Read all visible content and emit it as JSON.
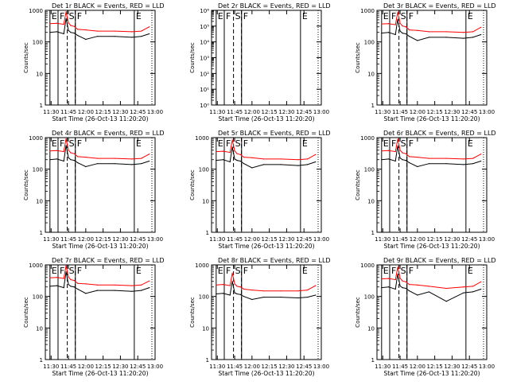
{
  "page": {
    "x_tick_labels": [
      "11:30",
      "11:45",
      "12:00",
      "12:15",
      "12:30",
      "12:45",
      "13:00"
    ],
    "colors": {
      "events": "#000000",
      "lld": "#ff0000",
      "frame": "#000000",
      "background": "#ffffff"
    }
  },
  "chart_data": [
    {
      "id": "det-1r",
      "type": "line",
      "title": "Det 1r BLACK = Events, RED = LLD",
      "xlabel": "Start Time (26-Oct-13 11:20:20)",
      "ylabel": "Counts/sec",
      "y_scale": "log",
      "y_range": [
        1,
        1000
      ],
      "y_tick_labels": [
        "1",
        "10",
        "100",
        "1000"
      ],
      "x_range": [
        "11:25",
        "13:00"
      ],
      "markers": [
        {
          "label": "E",
          "time": "11:29",
          "style": "solid"
        },
        {
          "label": "F",
          "time": "11:36",
          "style": "solid"
        },
        {
          "label": "S",
          "time": "11:44",
          "style": "dashed"
        },
        {
          "label": "F",
          "time": "11:51",
          "style": "solid"
        },
        {
          "label": "E",
          "time": "12:42",
          "style": "solid"
        }
      ],
      "series": [
        {
          "name": "Events",
          "color": "#000000",
          "x": [
            "11:29",
            "11:35",
            "11:41",
            "11:43",
            "11:45",
            "11:47",
            "11:50",
            "11:53",
            "12:00",
            "12:10",
            "12:25",
            "12:40",
            "12:48",
            "12:55"
          ],
          "y": [
            200,
            210,
            180,
            550,
            230,
            200,
            190,
            160,
            120,
            150,
            150,
            140,
            150,
            180
          ]
        },
        {
          "name": "LLD",
          "color": "#ff0000",
          "x": [
            "11:29",
            "11:35",
            "11:41",
            "11:43",
            "11:45",
            "11:47",
            "11:50",
            "11:53",
            "12:00",
            "12:10",
            "12:25",
            "12:40",
            "12:48",
            "12:55"
          ],
          "y": [
            380,
            390,
            360,
            900,
            400,
            330,
            310,
            250,
            240,
            220,
            220,
            210,
            220,
            300
          ]
        }
      ]
    },
    {
      "id": "det-2r",
      "type": "line",
      "title": "Det 2r BLACK = Events, RED = LLD",
      "xlabel": "Start Time (26-Oct-13 11:20:20)",
      "ylabel": "Counts/sec",
      "y_scale": "log",
      "y_range": [
        1,
        1000000
      ],
      "y_tick_labels": [
        "10⁰",
        "10¹",
        "10²",
        "10³",
        "10⁴",
        "10⁵",
        "10⁶"
      ],
      "x_range": [
        "11:25",
        "13:00"
      ],
      "markers": [
        {
          "label": "E",
          "time": "11:29",
          "style": "solid"
        },
        {
          "label": "F",
          "time": "11:36",
          "style": "solid"
        },
        {
          "label": "S",
          "time": "11:44",
          "style": "dashed"
        },
        {
          "label": "F",
          "time": "11:51",
          "style": "solid"
        },
        {
          "label": "E",
          "time": "12:42",
          "style": "solid"
        }
      ],
      "series": []
    },
    {
      "id": "det-3r",
      "type": "line",
      "title": "Det 3r BLACK = Events, RED = LLD",
      "xlabel": "Start Time (26-Oct-13 11:20:20)",
      "ylabel": "Counts/sec",
      "y_scale": "log",
      "y_range": [
        1,
        1000
      ],
      "y_tick_labels": [
        "1",
        "10",
        "100",
        "1000"
      ],
      "x_range": [
        "11:25",
        "13:00"
      ],
      "markers": [
        {
          "label": "E",
          "time": "11:29",
          "style": "solid"
        },
        {
          "label": "F",
          "time": "11:36",
          "style": "solid"
        },
        {
          "label": "S",
          "time": "11:44",
          "style": "dashed"
        },
        {
          "label": "F",
          "time": "11:51",
          "style": "solid"
        },
        {
          "label": "E",
          "time": "12:42",
          "style": "solid"
        }
      ],
      "series": [
        {
          "name": "Events",
          "color": "#000000",
          "x": [
            "11:29",
            "11:35",
            "11:41",
            "11:43",
            "11:45",
            "11:47",
            "11:50",
            "11:53",
            "12:00",
            "12:10",
            "12:25",
            "12:40",
            "12:48",
            "12:55"
          ],
          "y": [
            190,
            200,
            170,
            520,
            220,
            190,
            180,
            150,
            110,
            140,
            140,
            130,
            140,
            170
          ]
        },
        {
          "name": "LLD",
          "color": "#ff0000",
          "x": [
            "11:29",
            "11:35",
            "11:41",
            "11:43",
            "11:45",
            "11:47",
            "11:50",
            "11:53",
            "12:00",
            "12:10",
            "12:25",
            "12:40",
            "12:48",
            "12:55"
          ],
          "y": [
            370,
            380,
            350,
            880,
            390,
            320,
            300,
            240,
            230,
            210,
            210,
            200,
            210,
            290
          ]
        }
      ]
    },
    {
      "id": "det-4r",
      "type": "line",
      "title": "Det 4r BLACK = Events, RED = LLD",
      "xlabel": "Start Time (26-Oct-13 11:20:20)",
      "ylabel": "Counts/sec",
      "y_scale": "log",
      "y_range": [
        1,
        1000
      ],
      "y_tick_labels": [
        "1",
        "10",
        "100",
        "1000"
      ],
      "x_range": [
        "11:25",
        "13:00"
      ],
      "markers": [
        {
          "label": "E",
          "time": "11:29",
          "style": "solid"
        },
        {
          "label": "F",
          "time": "11:36",
          "style": "solid"
        },
        {
          "label": "S",
          "time": "11:44",
          "style": "dashed"
        },
        {
          "label": "F",
          "time": "11:51",
          "style": "solid"
        },
        {
          "label": "E",
          "time": "12:42",
          "style": "solid"
        }
      ],
      "series": [
        {
          "name": "Events",
          "color": "#000000",
          "x": [
            "11:29",
            "11:35",
            "11:41",
            "11:43",
            "11:45",
            "11:47",
            "11:50",
            "11:53",
            "12:00",
            "12:10",
            "12:25",
            "12:40",
            "12:48",
            "12:55"
          ],
          "y": [
            200,
            210,
            180,
            560,
            230,
            200,
            190,
            160,
            120,
            150,
            150,
            140,
            150,
            180
          ]
        },
        {
          "name": "LLD",
          "color": "#ff0000",
          "x": [
            "11:29",
            "11:35",
            "11:41",
            "11:43",
            "11:45",
            "11:47",
            "11:50",
            "11:53",
            "12:00",
            "12:10",
            "12:25",
            "12:40",
            "12:48",
            "12:55"
          ],
          "y": [
            380,
            390,
            360,
            920,
            400,
            330,
            310,
            250,
            240,
            220,
            220,
            210,
            220,
            300
          ]
        }
      ]
    },
    {
      "id": "det-5r",
      "type": "line",
      "title": "Det 5r BLACK = Events, RED = LLD",
      "xlabel": "Start Time (26-Oct-13 11:20:20)",
      "ylabel": "Counts/sec",
      "y_scale": "log",
      "y_range": [
        1,
        1000
      ],
      "y_tick_labels": [
        "1",
        "10",
        "100",
        "1000"
      ],
      "x_range": [
        "11:25",
        "13:00"
      ],
      "markers": [
        {
          "label": "E",
          "time": "11:29",
          "style": "solid"
        },
        {
          "label": "F",
          "time": "11:36",
          "style": "solid"
        },
        {
          "label": "S",
          "time": "11:44",
          "style": "dashed"
        },
        {
          "label": "F",
          "time": "11:51",
          "style": "solid"
        },
        {
          "label": "E",
          "time": "12:42",
          "style": "solid"
        }
      ],
      "series": [
        {
          "name": "Events",
          "color": "#000000",
          "x": [
            "11:29",
            "11:35",
            "11:41",
            "11:43",
            "11:45",
            "11:47",
            "11:50",
            "11:53",
            "12:00",
            "12:10",
            "12:25",
            "12:40",
            "12:48",
            "12:55"
          ],
          "y": [
            190,
            200,
            170,
            500,
            210,
            190,
            180,
            150,
            110,
            140,
            140,
            130,
            140,
            170
          ]
        },
        {
          "name": "LLD",
          "color": "#ff0000",
          "x": [
            "11:29",
            "11:35",
            "11:41",
            "11:43",
            "11:45",
            "11:47",
            "11:50",
            "11:53",
            "12:00",
            "12:10",
            "12:25",
            "12:40",
            "12:48",
            "12:55"
          ],
          "y": [
            360,
            370,
            340,
            850,
            380,
            310,
            290,
            240,
            230,
            210,
            210,
            200,
            210,
            290
          ]
        }
      ]
    },
    {
      "id": "det-6r",
      "type": "line",
      "title": "Det 6r BLACK = Events, RED = LLD",
      "xlabel": "Start Time (26-Oct-13 11:20:20)",
      "ylabel": "Counts/sec",
      "y_scale": "log",
      "y_range": [
        1,
        1000
      ],
      "y_tick_labels": [
        "1",
        "10",
        "100",
        "1000"
      ],
      "x_range": [
        "11:25",
        "13:00"
      ],
      "markers": [
        {
          "label": "E",
          "time": "11:29",
          "style": "solid"
        },
        {
          "label": "F",
          "time": "11:36",
          "style": "solid"
        },
        {
          "label": "S",
          "time": "11:44",
          "style": "dashed"
        },
        {
          "label": "F",
          "time": "11:51",
          "style": "solid"
        },
        {
          "label": "E",
          "time": "12:42",
          "style": "solid"
        }
      ],
      "series": [
        {
          "name": "Events",
          "color": "#000000",
          "x": [
            "11:29",
            "11:35",
            "11:41",
            "11:43",
            "11:45",
            "11:47",
            "11:50",
            "11:53",
            "12:00",
            "12:10",
            "12:25",
            "12:40",
            "12:48",
            "12:55"
          ],
          "y": [
            200,
            210,
            180,
            540,
            225,
            200,
            190,
            160,
            120,
            150,
            150,
            140,
            150,
            180
          ]
        },
        {
          "name": "LLD",
          "color": "#ff0000",
          "x": [
            "11:29",
            "11:35",
            "11:41",
            "11:43",
            "11:45",
            "11:47",
            "11:50",
            "11:53",
            "12:00",
            "12:10",
            "12:25",
            "12:40",
            "12:48",
            "12:55"
          ],
          "y": [
            380,
            390,
            360,
            900,
            400,
            330,
            310,
            250,
            240,
            220,
            220,
            210,
            220,
            300
          ]
        }
      ]
    },
    {
      "id": "det-7r",
      "type": "line",
      "title": "Det 7r BLACK = Events, RED = LLD",
      "xlabel": "Start Time (26-Oct-13 11:20:20)",
      "ylabel": "Counts/sec",
      "y_scale": "log",
      "y_range": [
        1,
        1000
      ],
      "y_tick_labels": [
        "1",
        "10",
        "100",
        "1000"
      ],
      "x_range": [
        "11:25",
        "13:00"
      ],
      "markers": [
        {
          "label": "E",
          "time": "11:29",
          "style": "solid"
        },
        {
          "label": "F",
          "time": "11:36",
          "style": "solid"
        },
        {
          "label": "S",
          "time": "11:44",
          "style": "dashed"
        },
        {
          "label": "F",
          "time": "11:51",
          "style": "solid"
        },
        {
          "label": "E",
          "time": "12:42",
          "style": "solid"
        }
      ],
      "series": [
        {
          "name": "Events",
          "color": "#000000",
          "x": [
            "11:29",
            "11:35",
            "11:41",
            "11:43",
            "11:45",
            "11:47",
            "11:50",
            "11:53",
            "12:00",
            "12:10",
            "12:25",
            "12:40",
            "12:48",
            "12:55"
          ],
          "y": [
            210,
            220,
            190,
            600,
            240,
            210,
            200,
            170,
            125,
            155,
            155,
            145,
            155,
            190
          ]
        },
        {
          "name": "LLD",
          "color": "#ff0000",
          "x": [
            "11:29",
            "11:35",
            "11:41",
            "11:43",
            "11:45",
            "11:47",
            "11:50",
            "11:53",
            "12:00",
            "12:10",
            "12:25",
            "12:40",
            "12:48",
            "12:55"
          ],
          "y": [
            390,
            400,
            370,
            950,
            410,
            340,
            320,
            260,
            250,
            230,
            230,
            220,
            230,
            310
          ]
        }
      ]
    },
    {
      "id": "det-8r",
      "type": "line",
      "title": "Det 8r BLACK = Events, RED = LLD",
      "xlabel": "Start Time (26-Oct-13 11:20:20)",
      "ylabel": "Counts/sec",
      "y_scale": "log",
      "y_range": [
        1,
        1000
      ],
      "y_tick_labels": [
        "1",
        "10",
        "100",
        "1000"
      ],
      "x_range": [
        "11:25",
        "13:00"
      ],
      "markers": [
        {
          "label": "E",
          "time": "11:29",
          "style": "solid"
        },
        {
          "label": "F",
          "time": "11:36",
          "style": "solid"
        },
        {
          "label": "S",
          "time": "11:44",
          "style": "dashed"
        },
        {
          "label": "F",
          "time": "11:51",
          "style": "solid"
        },
        {
          "label": "E",
          "time": "12:42",
          "style": "solid"
        }
      ],
      "series": [
        {
          "name": "Events",
          "color": "#000000",
          "x": [
            "11:29",
            "11:35",
            "11:41",
            "11:43",
            "11:45",
            "11:47",
            "11:50",
            "11:53",
            "12:00",
            "12:10",
            "12:25",
            "12:40",
            "12:48",
            "12:55"
          ],
          "y": [
            120,
            125,
            110,
            300,
            130,
            120,
            115,
            100,
            80,
            95,
            95,
            90,
            95,
            110
          ]
        },
        {
          "name": "LLD",
          "color": "#ff0000",
          "x": [
            "11:29",
            "11:35",
            "11:41",
            "11:43",
            "11:45",
            "11:47",
            "11:50",
            "11:53",
            "12:00",
            "12:10",
            "12:25",
            "12:40",
            "12:48",
            "12:55"
          ],
          "y": [
            230,
            240,
            220,
            550,
            250,
            210,
            200,
            170,
            160,
            150,
            150,
            150,
            160,
            220
          ]
        }
      ]
    },
    {
      "id": "det-9r",
      "type": "line",
      "title": "Det 9r BLACK = Events, RED = LLD",
      "xlabel": "Start Time (26-Oct-13 11:20:20)",
      "ylabel": "Counts/sec",
      "y_scale": "log",
      "y_range": [
        1,
        1000
      ],
      "y_tick_labels": [
        "1",
        "10",
        "100",
        "1000"
      ],
      "x_range": [
        "11:25",
        "13:00"
      ],
      "markers": [
        {
          "label": "E",
          "time": "11:29",
          "style": "solid"
        },
        {
          "label": "F",
          "time": "11:36",
          "style": "solid"
        },
        {
          "label": "S",
          "time": "11:44",
          "style": "dashed"
        },
        {
          "label": "F",
          "time": "11:51",
          "style": "solid"
        },
        {
          "label": "E",
          "time": "12:42",
          "style": "solid"
        }
      ],
      "series": [
        {
          "name": "Events",
          "color": "#000000",
          "x": [
            "11:29",
            "11:35",
            "11:41",
            "11:43",
            "11:45",
            "11:47",
            "11:50",
            "11:53",
            "12:00",
            "12:10",
            "12:25",
            "12:40",
            "12:48",
            "12:55"
          ],
          "y": [
            190,
            200,
            170,
            510,
            215,
            190,
            180,
            150,
            110,
            140,
            70,
            130,
            140,
            170
          ]
        },
        {
          "name": "LLD",
          "color": "#ff0000",
          "x": [
            "11:29",
            "11:35",
            "11:41",
            "11:43",
            "11:45",
            "11:47",
            "11:50",
            "11:53",
            "12:00",
            "12:10",
            "12:25",
            "12:40",
            "12:48",
            "12:55"
          ],
          "y": [
            360,
            370,
            340,
            860,
            380,
            310,
            290,
            240,
            230,
            210,
            180,
            200,
            210,
            290
          ]
        }
      ]
    }
  ]
}
